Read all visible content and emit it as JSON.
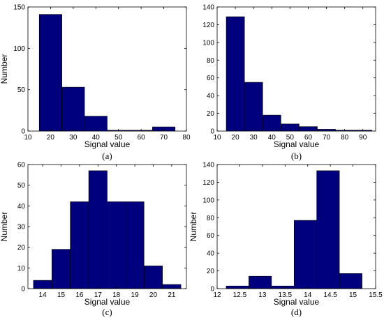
{
  "chart_data": [
    {
      "type": "bar",
      "caption": "(a)",
      "xlabel": "Signal value",
      "ylabel": "Number",
      "xlim": [
        10,
        80
      ],
      "ylim": [
        0,
        150
      ],
      "xticks": [
        "10",
        "20",
        "30",
        "40",
        "50",
        "60",
        "70",
        "80"
      ],
      "yticks": [
        "0",
        "50",
        "100",
        "150"
      ],
      "bins": [
        {
          "x0": 15,
          "x1": 25,
          "value": 141
        },
        {
          "x0": 25,
          "x1": 35,
          "value": 53
        },
        {
          "x0": 35,
          "x1": 45,
          "value": 18
        },
        {
          "x0": 45,
          "x1": 55,
          "value": 1
        },
        {
          "x0": 55,
          "x1": 65,
          "value": 1
        },
        {
          "x0": 65,
          "x1": 75,
          "value": 5
        }
      ],
      "bar_color": "#00007f"
    },
    {
      "type": "bar",
      "caption": "(b)",
      "xlabel": "Signal value",
      "ylabel": "",
      "xlim": [
        10,
        97
      ],
      "ylim": [
        0,
        140
      ],
      "xticks": [
        "10",
        "20",
        "30",
        "40",
        "50",
        "60",
        "70",
        "80",
        "90"
      ],
      "yticks": [
        "0",
        "20",
        "40",
        "60",
        "80",
        "100",
        "120",
        "140"
      ],
      "bins": [
        {
          "x0": 15,
          "x1": 25,
          "value": 129
        },
        {
          "x0": 25,
          "x1": 35,
          "value": 55
        },
        {
          "x0": 35,
          "x1": 45,
          "value": 18
        },
        {
          "x0": 45,
          "x1": 55,
          "value": 8
        },
        {
          "x0": 55,
          "x1": 65,
          "value": 5
        },
        {
          "x0": 65,
          "x1": 75,
          "value": 2
        },
        {
          "x0": 75,
          "x1": 85,
          "value": 1
        },
        {
          "x0": 85,
          "x1": 95,
          "value": 1
        }
      ],
      "bar_color": "#00007f"
    },
    {
      "type": "bar",
      "caption": "(c)",
      "xlabel": "Signal value",
      "ylabel": "Number",
      "xlim": [
        13.2,
        21.8
      ],
      "ylim": [
        0,
        60
      ],
      "xticks": [
        "14",
        "15",
        "16",
        "17",
        "18",
        "19",
        "20",
        "21"
      ],
      "yticks": [
        "0",
        "10",
        "20",
        "30",
        "40",
        "50",
        "60"
      ],
      "bins": [
        {
          "x0": 13.5,
          "x1": 14.5,
          "value": 4
        },
        {
          "x0": 14.5,
          "x1": 15.5,
          "value": 19
        },
        {
          "x0": 15.5,
          "x1": 16.5,
          "value": 42
        },
        {
          "x0": 16.5,
          "x1": 17.5,
          "value": 57
        },
        {
          "x0": 17.5,
          "x1": 18.5,
          "value": 42
        },
        {
          "x0": 18.5,
          "x1": 19.5,
          "value": 42
        },
        {
          "x0": 19.5,
          "x1": 20.5,
          "value": 11
        },
        {
          "x0": 20.5,
          "x1": 21.5,
          "value": 2
        }
      ],
      "bar_color": "#00007f"
    },
    {
      "type": "bar",
      "caption": "(d)",
      "xlabel": "Signal value",
      "ylabel": "Number",
      "xlim": [
        12,
        15.5
      ],
      "ylim": [
        0,
        140
      ],
      "xticks": [
        "12",
        "12.5",
        "13",
        "13.5",
        "14",
        "14.5",
        "15",
        "15.5"
      ],
      "yticks": [
        "0",
        "20",
        "40",
        "60",
        "80",
        "100",
        "120",
        "140"
      ],
      "bins": [
        {
          "x0": 12.2,
          "x1": 12.7,
          "value": 3
        },
        {
          "x0": 12.7,
          "x1": 13.2,
          "value": 14
        },
        {
          "x0": 13.2,
          "x1": 13.7,
          "value": 3
        },
        {
          "x0": 13.7,
          "x1": 14.2,
          "value": 77
        },
        {
          "x0": 14.2,
          "x1": 14.7,
          "value": 133
        },
        {
          "x0": 14.7,
          "x1": 15.2,
          "value": 17
        }
      ],
      "bar_color": "#00007f"
    }
  ]
}
